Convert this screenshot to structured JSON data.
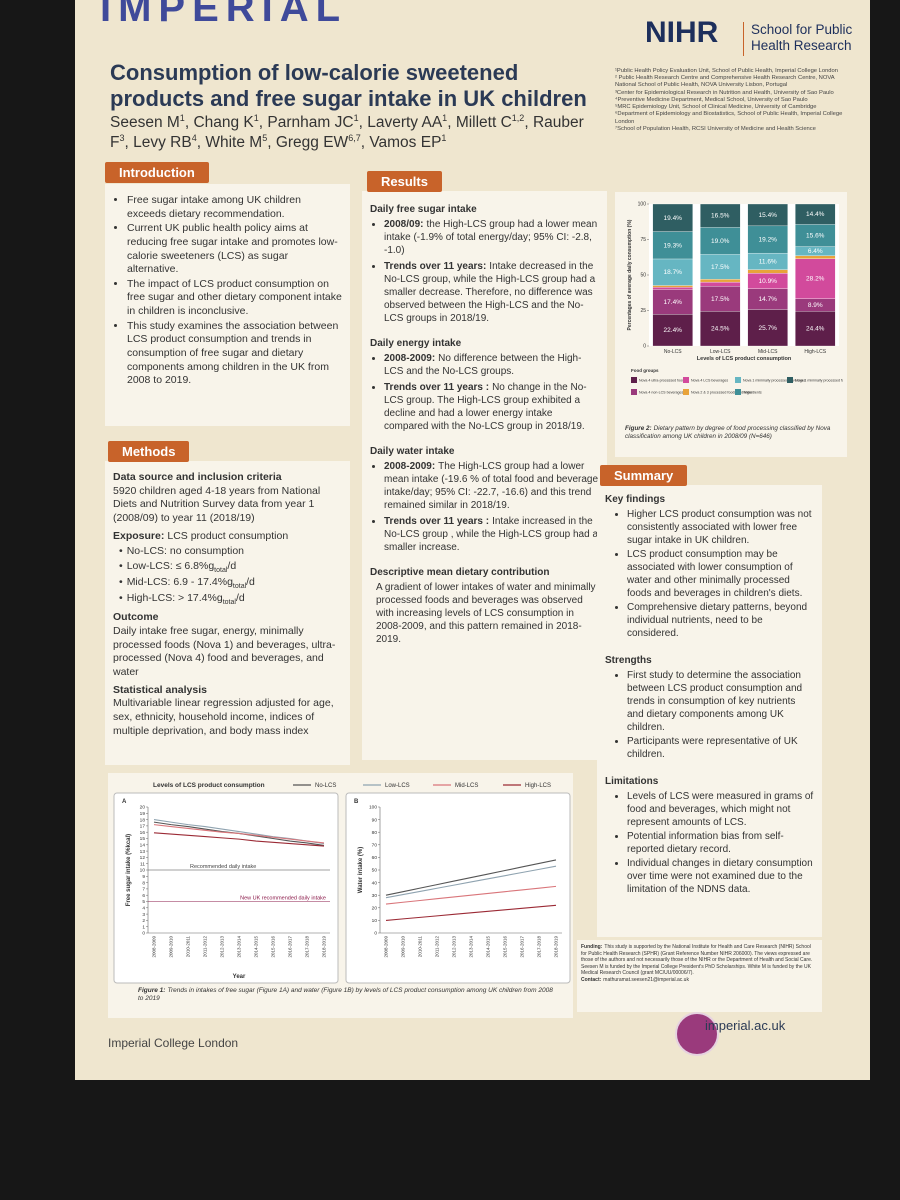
{
  "header": {
    "logo": "IMPERIAL",
    "nihr": "NIHR",
    "nihr_sub": "School for Public Health Research",
    "title": "Consumption of low-calorie sweetened products and free sugar intake in UK children",
    "authors": [
      {
        "name": "Seesen M",
        "sup": "1"
      },
      {
        "name": "Chang K",
        "sup": "1"
      },
      {
        "name": "Parnham JC",
        "sup": "1"
      },
      {
        "name": "Laverty AA",
        "sup": "1"
      },
      {
        "name": "Millett C",
        "sup": "1,2"
      },
      {
        "name": "Rauber F",
        "sup": "3"
      },
      {
        "name": "Levy RB",
        "sup": "4"
      },
      {
        "name": "White M",
        "sup": "5"
      },
      {
        "name": "Gregg EW",
        "sup": "6,7"
      },
      {
        "name": "Vamos EP",
        "sup": "1"
      }
    ],
    "author_separator": ", ",
    "affiliations": [
      "¹Public Health Policy Evaluation Unit, School of Public Health, Imperial College London",
      "² Public Health Research Centre and Comprehensive Health Research Centre, NOVA National School of Public Health, NOVA University Lisbon, Portugal",
      "³Center for Epidemiological Research in Nutrition and Health, University of Sao Paulo",
      "⁴Preventive Medicine Department, Medical School, University of Sao Paulo",
      "⁵MRC Epidemiology Unit, School of Clinical Medicine, University of Cambridge",
      "⁶Department of Epidemiology and Biostatistics, School of Public Health, Imperial College London",
      "⁷School of Population Health, RCSI University of Medicine and Health Science"
    ]
  },
  "introduction": {
    "heading": "Introduction",
    "bullets": [
      "Free sugar intake among UK children exceeds dietary recommendation.",
      "Current UK public health policy aims at reducing free sugar intake and promotes low-calorie sweeteners (LCS) as sugar alternative.",
      "The impact of LCS product consumption on free sugar and other dietary component intake in children is inconclusive.",
      "This study examines the association between LCS product consumption and trends in consumption of free sugar and dietary components among children in the UK from 2008 to 2019."
    ]
  },
  "methods": {
    "heading": "Methods",
    "blocks": [
      {
        "title": "Data source and inclusion criteria",
        "text": "5920 children aged 4-18 years from National Diets and Nutrition Survey data from year 1 (2008/09) to year 11 (2018/19)"
      },
      {
        "lead": "Exposure:",
        "text": "LCS product consumption",
        "items": [
          [
            "No-LCS: no consumption"
          ],
          [
            "Low-LCS: ≤ 6.8%g",
            "total",
            "/d"
          ],
          [
            "Mid-LCS: 6.9 - 17.4%g",
            "total",
            "/d"
          ],
          [
            "High-LCS: > 17.4%g",
            "total",
            "/d"
          ]
        ]
      },
      {
        "title": "Outcome",
        "text": "Daily intake free sugar, energy, minimally processed foods (Nova 1) and beverages, ultra-processed (Nova 4) food and beverages, and water"
      },
      {
        "title": "Statistical analysis",
        "text": "Multivariable linear regression adjusted for age, sex, ethnicity, household income, indices of multiple deprivation, and body mass index"
      }
    ]
  },
  "results": {
    "heading": "Results",
    "sections": [
      {
        "title": "Daily free sugar intake",
        "items": [
          {
            "lead": "2008/09:",
            "text": "the High-LCS group had a lower mean intake (-1.9% of total energy/day; 95% CI: -2.8, -1.0)"
          },
          {
            "lead": "Trends over 11 years:",
            "text": "Intake decreased in the No-LCS group, while the High-LCS group had a smaller decrease. Therefore, no difference was observed between the High-LCS and the No-LCS groups in 2018/19."
          }
        ]
      },
      {
        "title": "Daily energy intake",
        "items": [
          {
            "lead": "2008-2009:",
            "text": "No difference between the High-LCS and the No-LCS groups."
          },
          {
            "lead": "Trends over 11 years :",
            "text": "No change in the No-LCS group. The High-LCS group exhibited a decline and had a lower energy intake compared with the No-LCS group in 2018/19."
          }
        ]
      },
      {
        "title": "Daily water intake",
        "items": [
          {
            "lead": "2008-2009:",
            "text": "The High-LCS group had a lower mean intake (-19.6 % of total food and beverage intake/day; 95% CI: -22.7, -16.6) and this trend remained similar in 2018/19."
          },
          {
            "lead": "Trends over 11 years :",
            "text": "Intake increased in the No-LCS group , while the High-LCS group had a smaller increase."
          }
        ]
      },
      {
        "title": "Descriptive mean dietary contribution",
        "text": "A gradient of lower intakes of water and minimally processed foods and beverages was observed with increasing levels of LCS consumption in 2008-2009, and this pattern remained in 2018-2019."
      }
    ]
  },
  "summary": {
    "heading": "Summary",
    "sections": [
      {
        "title": "Key findings",
        "bullets": [
          "Higher LCS product consumption was not consistently associated with lower free sugar intake in UK children.",
          "LCS product consumption may be associated with lower consumption of water and other minimally processed foods and beverages in children's diets.",
          "Comprehensive dietary patterns, beyond individual nutrients, need to be considered."
        ]
      },
      {
        "title": "Strengths",
        "bullets": [
          "First study to determine the association between LCS product consumption and trends in consumption of key nutrients and dietary components among UK children.",
          "Participants were representative of UK children."
        ]
      },
      {
        "title": "Limitations",
        "bullets": [
          "Levels of LCS were measured in grams of food and beverages, which might not represent amounts of LCS.",
          "Potential information bias from self-reported dietary record.",
          "Individual changes in dietary consumption over time were not examined due to the limitation of the NDNS data."
        ]
      }
    ]
  },
  "funding": {
    "lead": "Funding:",
    "text": "This study is supported by the National Institute for Health and Care Research (NIHR) School for Public Health Research (SPHR) (Grant Reference Number NIHR 206000). The views expressed are those of the authors and not necessarily those of the NIHR or the Department of Health and Social Care. Seesen M is funded by the Imperial College President's PhD Scholarships. White M is funded by the UK Medical Research Council (grant MC/UU/00006/7).",
    "contact_lead": "Contact:",
    "contact": "mathuramat.seesen21@imperial.ac.uk"
  },
  "footer": {
    "institution": "Imperial College London",
    "url": "imperial.ac.uk"
  },
  "figure1": {
    "legend_title": "Levels of LCS product consumption",
    "caption_lead": "Figure 1:",
    "caption": "Trends in intakes of free sugar (Figure 1A) and water (Figure 1B) by levels of LCS product consumption among UK children from 2008 to 2019"
  },
  "chart_data": [
    {
      "type": "line",
      "panel": "A",
      "x": [
        "2008-2009",
        "2009-2010",
        "2010-2011",
        "2011-2012",
        "2012-2013",
        "2013-2014",
        "2014-2015",
        "2015-2016",
        "2016-2017",
        "2017-2018",
        "2018-2019"
      ],
      "y_label": "Free sugar intake (%kcal)",
      "x_label": "Year",
      "ylim": [
        0,
        20
      ],
      "yticks": [
        0,
        1,
        2,
        3,
        4,
        5,
        6,
        7,
        8,
        9,
        10,
        11,
        12,
        13,
        14,
        15,
        16,
        17,
        18,
        19,
        20
      ],
      "series": [
        {
          "name": "No-LCS",
          "color": "#555555",
          "values": [
            17.6,
            17.2,
            16.9,
            16.5,
            16.1,
            15.8,
            15.4,
            15.0,
            14.6,
            14.3,
            13.9
          ]
        },
        {
          "name": "Low-LCS",
          "color": "#8fa3b0",
          "values": [
            18.0,
            17.6,
            17.2,
            16.9,
            16.5,
            16.1,
            15.7,
            15.3,
            15.0,
            14.6,
            14.2
          ]
        },
        {
          "name": "Mid-LCS",
          "color": "#d9757a",
          "values": [
            17.2,
            16.9,
            16.6,
            16.3,
            16.0,
            15.8,
            15.5,
            15.2,
            14.9,
            14.6,
            14.3
          ]
        },
        {
          "name": "High-LCS",
          "color": "#9b2a35",
          "values": [
            15.9,
            15.7,
            15.5,
            15.3,
            15.1,
            14.9,
            14.6,
            14.4,
            14.2,
            14.0,
            13.8
          ]
        }
      ],
      "annotations": [
        {
          "text": "Recommended daily intake",
          "y": 10,
          "color": "#444444"
        },
        {
          "text": "New UK recommended daily intake",
          "y": 5,
          "color": "#8b1a4a"
        }
      ]
    },
    {
      "type": "line",
      "panel": "B",
      "x": [
        "2008-2009",
        "2009-2010",
        "2010-2011",
        "2011-2012",
        "2012-2013",
        "2013-2014",
        "2014-2015",
        "2015-2016",
        "2016-2017",
        "2017-2018",
        "2018-2019"
      ],
      "y_label": "Water intake (%)",
      "ylim": [
        0,
        100
      ],
      "yticks": [
        0,
        10,
        20,
        30,
        40,
        50,
        60,
        70,
        80,
        90,
        100
      ],
      "series": [
        {
          "color": "#555555",
          "values": [
            30,
            32.8,
            35.6,
            38.4,
            41.2,
            44,
            46.8,
            49.6,
            52.4,
            55.2,
            58
          ]
        },
        {
          "color": "#8fa3b0",
          "values": [
            28,
            30.5,
            33,
            35.5,
            38,
            40.5,
            43,
            45.5,
            48,
            50.5,
            53
          ]
        },
        {
          "color": "#d9757a",
          "values": [
            23,
            24.4,
            25.8,
            27.2,
            28.6,
            30,
            31.4,
            32.8,
            34.2,
            35.6,
            37
          ]
        },
        {
          "color": "#9b2a35",
          "values": [
            10,
            11.2,
            12.4,
            13.6,
            14.8,
            16,
            17.2,
            18.4,
            19.6,
            20.8,
            22
          ]
        }
      ]
    },
    {
      "type": "stacked_bar",
      "categories": [
        "No-LCS",
        "Low-LCS",
        "Mid-LCS",
        "High-LCS"
      ],
      "y_label": "Percentages of average daily consumption (%)",
      "x_label": "Levels of LCS product consumption",
      "ylim": [
        0,
        100
      ],
      "yticks": [
        0,
        25,
        50,
        75,
        100
      ],
      "legend_title": "Food groups",
      "caption_lead": "Figure 2:",
      "caption": "Dietary pattern by degree of food processing classified by Nova classification among UK children in 2008/09 (N=646)",
      "series": [
        {
          "name": "Nova 4 ultra-processed foods",
          "color": "#5e1f4a",
          "values": [
            22.4,
            24.5,
            25.7,
            24.4
          ],
          "value_labels": [
            "22.4%",
            "24.5%",
            "25.7%",
            "24.4%"
          ]
        },
        {
          "name": "Nova 4 non-LCS beverages",
          "color": "#9a3a7c",
          "values": [
            17.4,
            17.5,
            14.7,
            8.9
          ],
          "value_labels": [
            "17.4%",
            "17.5%",
            "14.7%",
            "8.9%"
          ]
        },
        {
          "name": "Nova 4 LCS beverages",
          "color": "#d24a9c",
          "values": [
            1.5,
            3,
            10.9,
            28.2
          ],
          "value_labels": [
            null,
            null,
            "10.9%",
            "28.2%"
          ]
        },
        {
          "name": "Nova 2 & 3 processed foods and ingredients",
          "color": "#e8a33a",
          "values": [
            1.3,
            2,
            2.5,
            2.1
          ],
          "value_labels": [
            null,
            null,
            null,
            null
          ]
        },
        {
          "name": "Nova 1 minimally processed beverages",
          "color": "#66b6c2",
          "values": [
            18.7,
            17.5,
            11.6,
            6.4
          ],
          "value_labels": [
            "18.7%",
            "17.5%",
            "11.6%",
            "6.4%"
          ]
        },
        {
          "name": "Water",
          "color": "#3f8f97",
          "values": [
            19.3,
            19.0,
            19.2,
            15.6
          ],
          "value_labels": [
            "19.3%",
            "19.0%",
            "19.2%",
            "15.6%"
          ]
        },
        {
          "name": "Nova 1 minimally processed foods",
          "color": "#2f5e62",
          "values": [
            19.4,
            16.5,
            15.4,
            14.4
          ],
          "value_labels": [
            "19.4%",
            "16.5%",
            "15.4%",
            "14.4%"
          ]
        }
      ]
    }
  ]
}
